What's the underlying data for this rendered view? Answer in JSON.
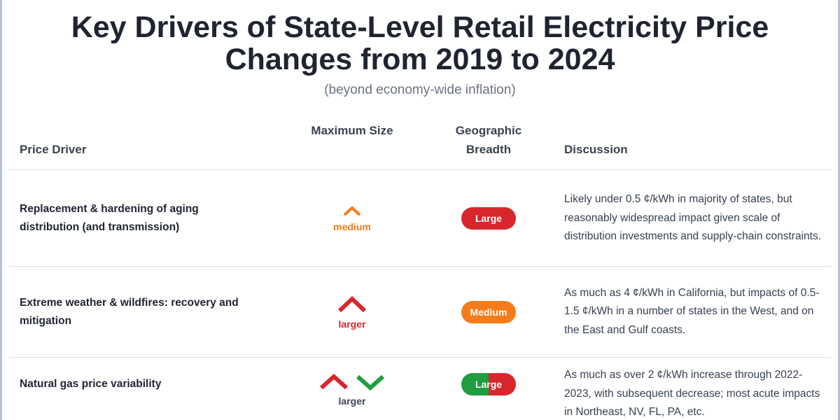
{
  "header": {
    "title": "Key Drivers of State-Level Retail Electricity Price Changes from 2019 to 2024",
    "subtitle": "(beyond economy-wide inflation)"
  },
  "table": {
    "columns": [
      "Price Driver",
      "Maximum Size",
      "Geographic Breadth",
      "Discussion"
    ],
    "rows": [
      {
        "driver": "Replacement & hardening of aging distribution (and transmission)",
        "size": "medium",
        "breadth": "Large",
        "discussion": "Likely under 0.5 ¢/kWh in majority of states, but reasonably widespread impact given scale of distribution investments and supply-chain constraints."
      },
      {
        "driver": "Extreme weather & wildfires: recovery and mitigation",
        "size": "larger",
        "breadth": "Medium",
        "discussion": "As much as 4 ¢/kWh in California, but impacts of 0.5-1.5 ¢/kWh in a number of states in the West, and on the East and Gulf coasts."
      },
      {
        "driver": "Natural gas price variability",
        "size": "larger",
        "breadth": "Large",
        "discussion": "As much as over 2 ¢/kWh increase through 2022-2023, with subsequent decrease; most acute impacts in Northeast, NV, FL, PA, etc."
      }
    ]
  }
}
